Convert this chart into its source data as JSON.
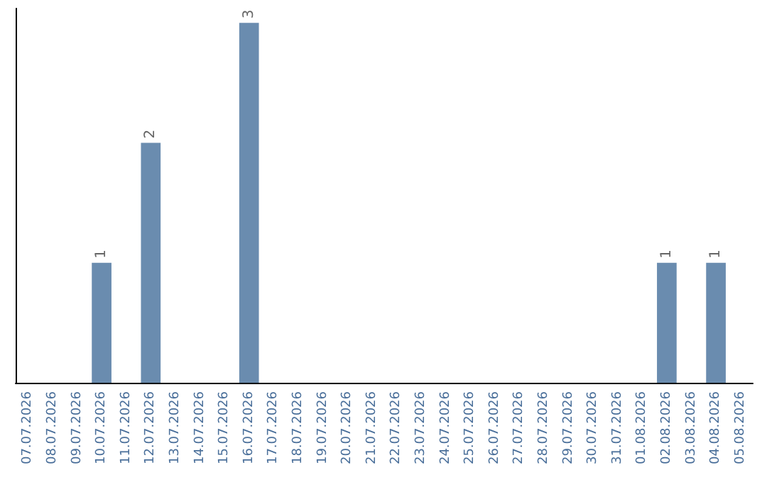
{
  "chart_data": {
    "type": "bar",
    "categories": [
      "07.07.2026",
      "08.07.2026",
      "09.07.2026",
      "10.07.2026",
      "11.07.2026",
      "12.07.2026",
      "13.07.2026",
      "14.07.2026",
      "15.07.2026",
      "16.07.2026",
      "17.07.2026",
      "18.07.2026",
      "19.07.2026",
      "20.07.2026",
      "21.07.2026",
      "22.07.2026",
      "23.07.2026",
      "24.07.2026",
      "25.07.2026",
      "26.07.2026",
      "27.07.2026",
      "28.07.2026",
      "29.07.2026",
      "30.07.2026",
      "31.07.2026",
      "01.08.2026",
      "02.08.2026",
      "03.08.2026",
      "04.08.2026",
      "05.08.2026"
    ],
    "values": [
      0,
      0,
      0,
      1,
      0,
      2,
      0,
      0,
      0,
      3,
      0,
      0,
      0,
      0,
      0,
      0,
      0,
      0,
      0,
      0,
      0,
      0,
      0,
      0,
      0,
      0,
      1,
      0,
      1,
      0
    ],
    "value_labels": [
      null,
      null,
      null,
      "1",
      null,
      "2",
      null,
      null,
      null,
      "3",
      null,
      null,
      null,
      null,
      null,
      null,
      null,
      null,
      null,
      null,
      null,
      null,
      null,
      null,
      null,
      null,
      "1",
      null,
      "1",
      null
    ],
    "color": "#6a8caf",
    "tick_labels": "x"
  }
}
